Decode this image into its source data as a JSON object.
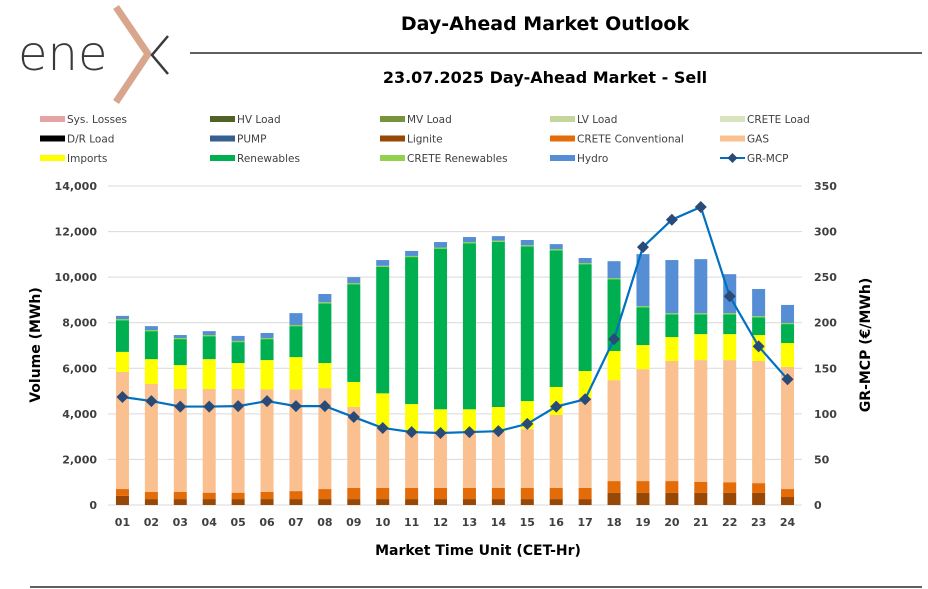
{
  "header": {
    "logo_text": "enex",
    "title": "Day-Ahead Market Outlook",
    "subtitle": "23.07.2025  Day-Ahead Market - Sell"
  },
  "chart_data": {
    "type": "bar",
    "stacked": true,
    "title": "23.07.2025  Day-Ahead Market - Sell",
    "xlabel": "Market Time Unit (CET-Hr)",
    "ylabel": "Volume (MWh)",
    "y2label": "GR-MCP (€/MWh)",
    "ylim": [
      0,
      14000
    ],
    "y2lim": [
      0,
      350
    ],
    "yticks": [
      "0",
      "2,000",
      "4,000",
      "6,000",
      "8,000",
      "10,000",
      "12,000",
      "14,000"
    ],
    "y2ticks": [
      "0",
      "50",
      "100",
      "150",
      "200",
      "250",
      "300",
      "350"
    ],
    "grid": true,
    "legend_position": "top",
    "categories": [
      "01",
      "02",
      "03",
      "04",
      "05",
      "06",
      "07",
      "08",
      "09",
      "10",
      "11",
      "12",
      "13",
      "14",
      "15",
      "16",
      "17",
      "18",
      "19",
      "20",
      "21",
      "22",
      "23",
      "24"
    ],
    "series": [
      {
        "name": "Sys. Losses",
        "color": "#e6a3a3",
        "values": [
          0,
          0,
          0,
          0,
          0,
          0,
          0,
          0,
          0,
          0,
          0,
          0,
          0,
          0,
          0,
          0,
          0,
          0,
          0,
          0,
          0,
          0,
          0,
          0
        ]
      },
      {
        "name": "HV Load",
        "color": "#4f6228",
        "values": [
          0,
          0,
          0,
          0,
          0,
          0,
          0,
          0,
          0,
          0,
          0,
          0,
          0,
          0,
          0,
          0,
          0,
          0,
          0,
          0,
          0,
          0,
          0,
          0
        ]
      },
      {
        "name": "MV Load",
        "color": "#77933c",
        "values": [
          0,
          0,
          0,
          0,
          0,
          0,
          0,
          0,
          0,
          0,
          0,
          0,
          0,
          0,
          0,
          0,
          0,
          0,
          0,
          0,
          0,
          0,
          0,
          0
        ]
      },
      {
        "name": "LV Load",
        "color": "#c3d69b",
        "values": [
          0,
          0,
          0,
          0,
          0,
          0,
          0,
          0,
          0,
          0,
          0,
          0,
          0,
          0,
          0,
          0,
          0,
          0,
          0,
          0,
          0,
          0,
          0,
          0
        ]
      },
      {
        "name": "CRETE Load",
        "color": "#d7e4bd",
        "values": [
          0,
          0,
          0,
          0,
          0,
          0,
          0,
          0,
          0,
          0,
          0,
          0,
          0,
          0,
          0,
          0,
          0,
          0,
          0,
          0,
          0,
          0,
          0,
          0
        ]
      },
      {
        "name": "D/R Load",
        "color": "#000000",
        "values": [
          0,
          0,
          0,
          0,
          0,
          0,
          0,
          0,
          0,
          0,
          0,
          0,
          0,
          0,
          0,
          0,
          0,
          0,
          0,
          0,
          0,
          0,
          0,
          0
        ]
      },
      {
        "name": "PUMP",
        "color": "#366092",
        "values": [
          0,
          0,
          0,
          0,
          0,
          0,
          0,
          0,
          0,
          0,
          0,
          0,
          0,
          0,
          0,
          0,
          0,
          0,
          0,
          0,
          0,
          0,
          0,
          0
        ]
      },
      {
        "name": "Lignite",
        "color": "#974706",
        "values": [
          400,
          260,
          260,
          260,
          260,
          260,
          260,
          260,
          260,
          260,
          260,
          260,
          260,
          260,
          260,
          260,
          260,
          530,
          530,
          530,
          530,
          530,
          530,
          350
        ]
      },
      {
        "name": "CRETE Conventional",
        "color": "#e36c09",
        "values": [
          300,
          310,
          310,
          280,
          280,
          310,
          350,
          440,
          490,
          490,
          490,
          490,
          490,
          490,
          490,
          490,
          490,
          520,
          520,
          520,
          490,
          470,
          430,
          350
        ]
      },
      {
        "name": "GAS",
        "color": "#fac090",
        "values": [
          5140,
          4740,
          4520,
          4550,
          4550,
          4500,
          4460,
          4430,
          3550,
          2650,
          2450,
          2400,
          2400,
          2450,
          2580,
          3200,
          3950,
          4430,
          4910,
          5270,
          5340,
          5360,
          5360,
          5360
        ]
      },
      {
        "name": "Imports",
        "color": "#ffff00",
        "values": [
          880,
          1090,
          1050,
          1310,
          1140,
          1290,
          1420,
          1100,
          1100,
          1500,
          1230,
          1050,
          1050,
          1100,
          1230,
          1230,
          1180,
          1280,
          1060,
          1050,
          1140,
          1140,
          1140,
          1050
        ]
      },
      {
        "name": "Renewables",
        "color": "#00b050",
        "values": [
          1390,
          1230,
          1140,
          1010,
          920,
          920,
          1360,
          2620,
          4290,
          5550,
          6450,
          7050,
          7290,
          7250,
          6790,
          6000,
          4690,
          3150,
          1660,
          1000,
          870,
          870,
          780,
          830
        ]
      },
      {
        "name": "CRETE Renewables",
        "color": "#92d050",
        "values": [
          50,
          50,
          50,
          50,
          50,
          50,
          50,
          50,
          50,
          50,
          50,
          50,
          50,
          50,
          50,
          50,
          50,
          50,
          50,
          50,
          50,
          50,
          50,
          50
        ]
      },
      {
        "name": "Hydro",
        "color": "#558ed5",
        "values": [
          140,
          170,
          130,
          170,
          220,
          220,
          520,
          360,
          260,
          250,
          220,
          240,
          220,
          200,
          230,
          220,
          220,
          740,
          2280,
          2330,
          2370,
          1710,
          1190,
          790
        ]
      }
    ],
    "line_series": {
      "name": "GR-MCP",
      "axis": "right",
      "color": "#0070c0",
      "marker_color": "#2a4a78",
      "values": [
        118.5,
        114,
        108,
        108,
        108.5,
        114,
        108.5,
        108.5,
        96.5,
        84.5,
        80,
        79,
        80,
        81,
        89,
        108,
        116,
        182,
        283,
        313,
        327,
        229,
        174,
        138
      ]
    },
    "legend_order": [
      "Sys. Losses",
      "HV Load",
      "MV Load",
      "LV Load",
      "CRETE Load",
      "D/R Load",
      "PUMP",
      "Lignite",
      "CRETE Conventional",
      "GAS",
      "Imports",
      "Renewables",
      "CRETE Renewables",
      "Hydro",
      "GR-MCP"
    ]
  }
}
